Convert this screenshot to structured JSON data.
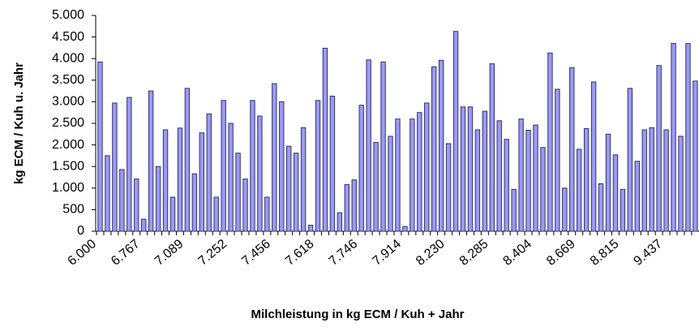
{
  "chart_data": {
    "type": "bar",
    "x_label": "Milchleistung in kg ECM / Kuh + Jahr",
    "y_label": "kg ECM / Kuh u. Jahr",
    "color": "#9999ff",
    "categories": [
      "6.000",
      null,
      null,
      null,
      null,
      null,
      "6.767",
      null,
      null,
      null,
      null,
      null,
      "7.089",
      null,
      null,
      null,
      null,
      null,
      "7.252",
      null,
      null,
      null,
      null,
      null,
      "7.456",
      null,
      null,
      null,
      null,
      null,
      "7.618",
      null,
      null,
      null,
      null,
      null,
      "7.746",
      null,
      null,
      null,
      null,
      null,
      "7.914",
      null,
      null,
      null,
      null,
      null,
      "8.230",
      null,
      null,
      null,
      null,
      null,
      "8.285",
      null,
      null,
      null,
      null,
      null,
      "8.404",
      null,
      null,
      null,
      null,
      null,
      "8.669",
      null,
      null,
      null,
      null,
      null,
      "8.815",
      null,
      null,
      null,
      null,
      null,
      "9.437",
      null,
      null,
      null,
      null
    ],
    "values": [
      3920,
      1750,
      2970,
      1430,
      3100,
      1210,
      280,
      3250,
      1500,
      2350,
      790,
      2390,
      3310,
      1330,
      2280,
      2720,
      790,
      3030,
      2500,
      1810,
      1210,
      3030,
      2670,
      790,
      3420,
      3000,
      1970,
      1810,
      2400,
      140,
      3030,
      4240,
      3130,
      430,
      1080,
      1190,
      2920,
      3970,
      2060,
      3920,
      2200,
      2600,
      110,
      2600,
      2750,
      2970,
      3810,
      3960,
      2030,
      4630,
      2880,
      2880,
      2350,
      2780,
      3880,
      2560,
      2130,
      970,
      2600,
      2340,
      2460,
      1940,
      4130,
      3290,
      1000,
      3790,
      1900,
      2380,
      3460,
      1100,
      2250,
      1770,
      970,
      3310,
      1620,
      2350,
      2400,
      3840,
      2350,
      4350,
      2200,
      4350,
      3480
    ],
    "ylim": [
      0,
      5000
    ],
    "yticks": [
      0,
      {
        "value": 500,
        "label": "500"
      },
      {
        "value": 1000,
        "label": "1.000"
      },
      {
        "value": 1500,
        "label": "1.500"
      },
      {
        "value": 2000,
        "label": "2.000"
      },
      {
        "value": 2500,
        "label": "2.500"
      },
      {
        "value": 3000,
        "label": "3.000"
      },
      {
        "value": 3500,
        "label": "3.500"
      },
      {
        "value": 4000,
        "label": "4.000"
      },
      {
        "value": 4500,
        "label": "4.500"
      },
      {
        "value": 5000,
        "label": "5.000"
      }
    ]
  }
}
